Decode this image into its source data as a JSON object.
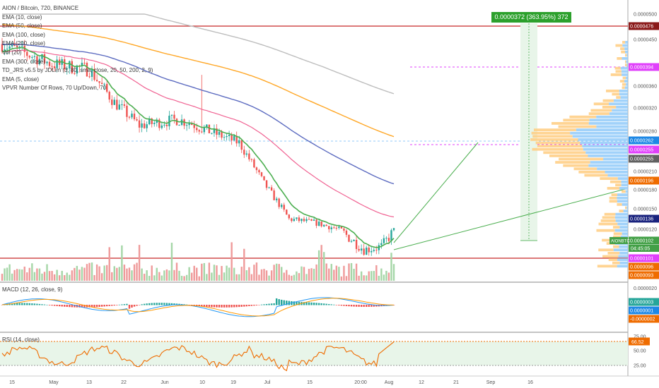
{
  "title": "AION / Bitcoin, 720, BINANCE",
  "indicators": [
    "EMA (10, close)",
    "EMA (50, close)",
    "EMA (100, close)",
    "EMA (200, close)",
    "Vol (20)",
    "EMA (300, close)",
    "TD_JRS v5.5 by JDLim (3, 80, sma, close, 20, 50, 200, 2, 9)",
    "EMA (5, close)",
    "VPVR Number Of Rows, 70 Up/Down, 70"
  ],
  "macd_label": "MACD (12, 26, close, 9)",
  "rsi_label": "RSI (14, close)",
  "measure_label": "0.0000372 (363.95%) 372",
  "symbol_tag": "AIONBTC",
  "countdown": "04:45:05",
  "colors": {
    "up": "#26a69a",
    "down": "#ef5350",
    "ema10": "#4caf50",
    "ema50": "#f06292",
    "ema100": "#5c6bc0",
    "ema200": "#ffa726",
    "ema300": "#bdbdbd",
    "rsi": "#ef6c00",
    "macd": "#2196f3",
    "signal": "#ff9800",
    "vpvr_up": "#90caf9",
    "vpvr_down": "#ffcc80"
  },
  "chart_data": {
    "type": "candlestick",
    "price_ticks": [
      "0.0000500",
      "0.0000450",
      "0.0000360",
      "0.0000320",
      "0.0000280",
      "0.0000210",
      "0.0000180",
      "0.0000150",
      "0.0000120"
    ],
    "price_tags": [
      {
        "text": "0.0000476",
        "bg": "#8b1a1a",
        "fg": "#ffffff"
      },
      {
        "text": "0.0000394",
        "bg": "#e040fb",
        "fg": "#ffffff"
      },
      {
        "text": "0.0000262",
        "bg": "#1e88e5",
        "fg": "#ffffff"
      },
      {
        "text": "0.0000255",
        "bg": "#e040fb",
        "fg": "#ffffff"
      },
      {
        "text": "0.0000255",
        "bg": "#616161",
        "fg": "#ffffff"
      },
      {
        "text": "0.0000196",
        "bg": "#ef6c00",
        "fg": "#ffffff"
      },
      {
        "text": "0.0000136",
        "bg": "#1a237e",
        "fg": "#ffffff"
      },
      {
        "text": "0.0000102",
        "bg": "#43a047",
        "fg": "#ffffff"
      },
      {
        "text": "0.0000101",
        "bg": "#e040fb",
        "fg": "#ffffff"
      },
      {
        "text": "0.0000096",
        "bg": "#ef6c00",
        "fg": "#ffffff"
      },
      {
        "text": "0.0000093",
        "bg": "#ef6c00",
        "fg": "#ffffff"
      }
    ],
    "macd_ticks": [
      "0.0000020"
    ],
    "macd_tags": [
      {
        "text": "0.0000003",
        "bg": "#26a69a",
        "fg": "#ffffff"
      },
      {
        "text": "0.0000001",
        "bg": "#1e88e5",
        "fg": "#ffffff"
      },
      {
        "text": "-0.0000002",
        "bg": "#ef6c00",
        "fg": "#ffffff"
      }
    ],
    "rsi_ticks": [
      "75.00",
      "50.00",
      "25.00"
    ],
    "rsi_tag": {
      "text": "66.52",
      "bg": "#ef6c00",
      "fg": "#ffffff"
    },
    "x_ticks": [
      "15",
      "May",
      "13",
      "22",
      "Jun",
      "10",
      "19",
      "Jul",
      "15",
      "20:00",
      "Aug",
      "12",
      "21",
      "Sep",
      "16"
    ]
  }
}
